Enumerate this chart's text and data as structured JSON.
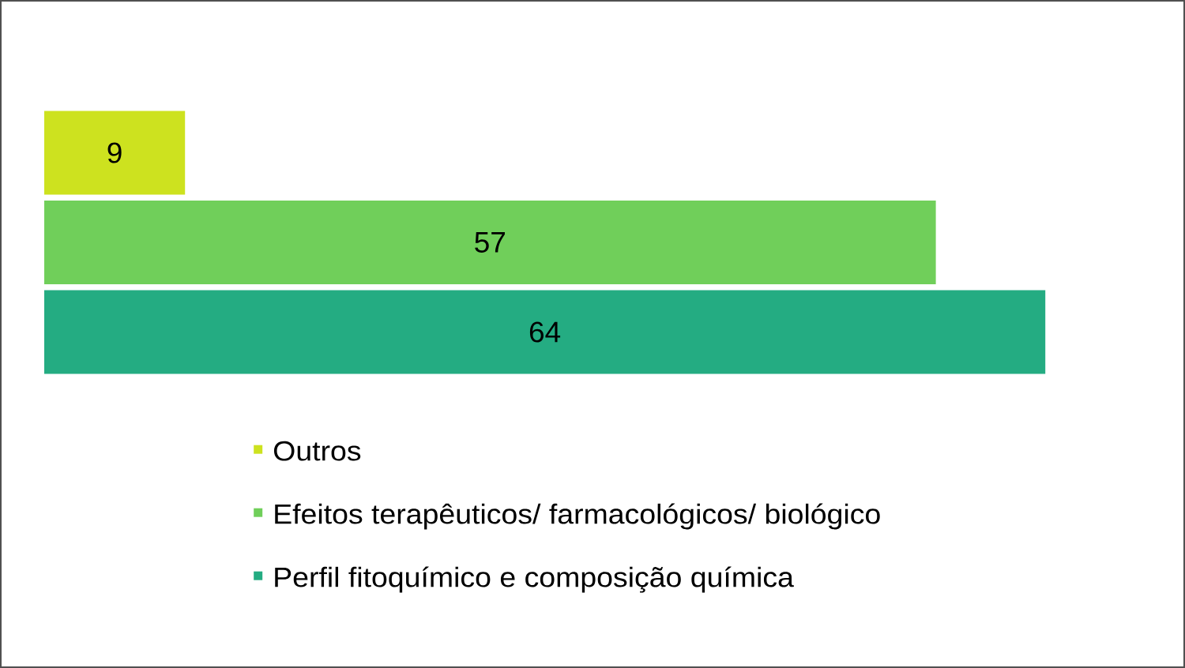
{
  "chart_data": {
    "type": "bar",
    "orientation": "horizontal",
    "categories": [
      null
    ],
    "series": [
      {
        "name": "Outros",
        "color": "#cde21f",
        "values": [
          9
        ]
      },
      {
        "name": "Efeitos terapêuticos/ farmacológicos/ biológico",
        "color": "#70cf5a",
        "values": [
          57
        ]
      },
      {
        "name": "Perfil fitoquímico e composição química",
        "color": "#24ac82",
        "values": [
          64
        ]
      }
    ],
    "tick_labels": false,
    "data_labels": true,
    "legend": "bottom"
  }
}
